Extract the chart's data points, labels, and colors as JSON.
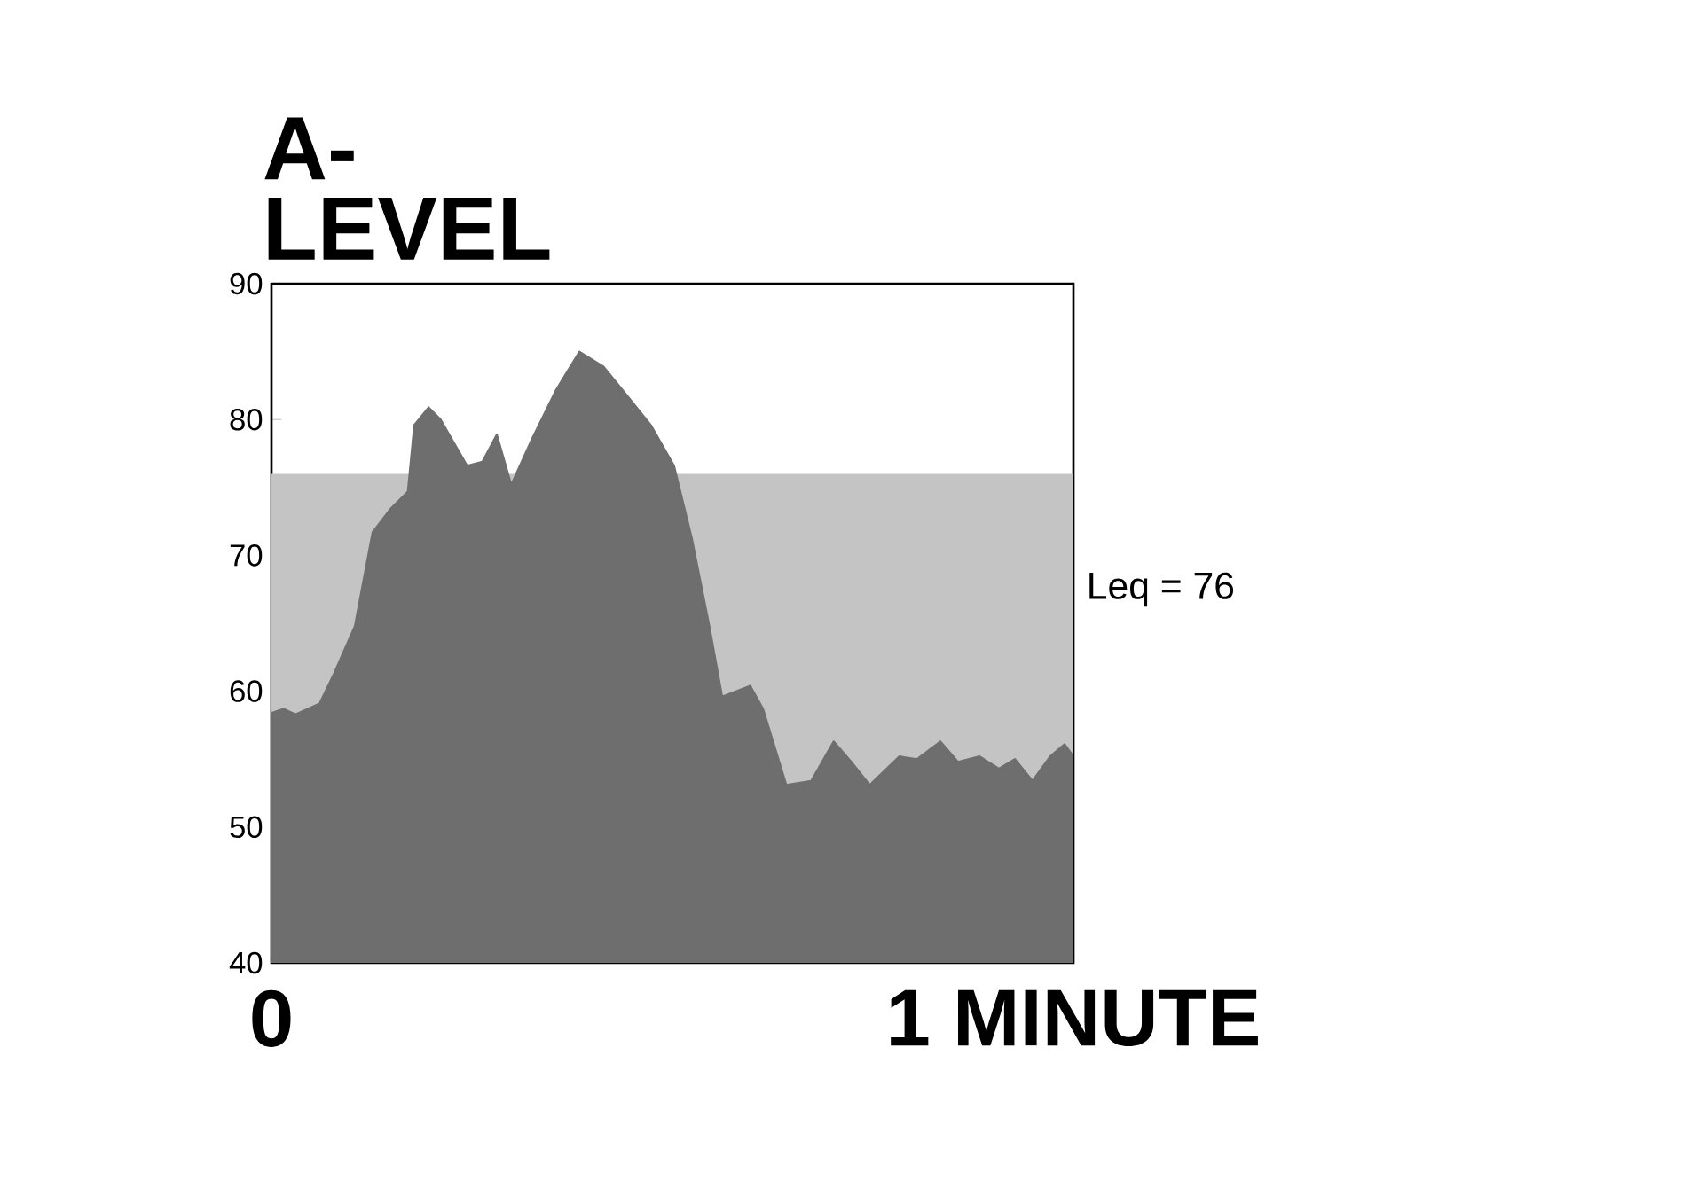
{
  "chart_data": {
    "type": "area",
    "ylabel": "A-LEVEL",
    "x": [
      0,
      0.015,
      0.03,
      0.06,
      0.078,
      0.104,
      0.126,
      0.148,
      0.17,
      0.178,
      0.196,
      0.211,
      0.244,
      0.263,
      0.281,
      0.299,
      0.325,
      0.355,
      0.384,
      0.414,
      0.443,
      0.473,
      0.502,
      0.524,
      0.546,
      0.562,
      0.597,
      0.613,
      0.642,
      0.673,
      0.701,
      0.723,
      0.746,
      0.783,
      0.805,
      0.834,
      0.856,
      0.883,
      0.907,
      0.927,
      0.949,
      0.971,
      0.989,
      1.0
    ],
    "series": [
      {
        "color": "#6e6e6e",
        "values": [
          58.4,
          58.7,
          58.3,
          59.1,
          61.3,
          64.8,
          71.7,
          73.4,
          74.7,
          79.6,
          80.9,
          80.0,
          76.6,
          76.9,
          78.9,
          75.2,
          78.6,
          82.2,
          85.0,
          83.9,
          81.8,
          79.6,
          76.6,
          71.3,
          64.8,
          59.6,
          60.4,
          58.7,
          53.1,
          53.4,
          56.3,
          54.8,
          53.1,
          55.2,
          55.0,
          56.3,
          54.8,
          55.2,
          54.3,
          55.0,
          53.4,
          55.2,
          56.1,
          55.2
        ]
      }
    ],
    "bands": [
      {
        "axis": "y",
        "from": 40,
        "to": 76,
        "label": "Leq = 76",
        "color": "#c4c4c4"
      }
    ],
    "xlim": [
      0,
      1
    ],
    "xticks": [
      {
        "value": 0,
        "label": "0"
      },
      {
        "value": 1,
        "label": "1 MINUTE"
      }
    ],
    "ylim": [
      40,
      90
    ],
    "yticks": [
      40,
      50,
      60,
      70,
      80,
      90
    ]
  }
}
